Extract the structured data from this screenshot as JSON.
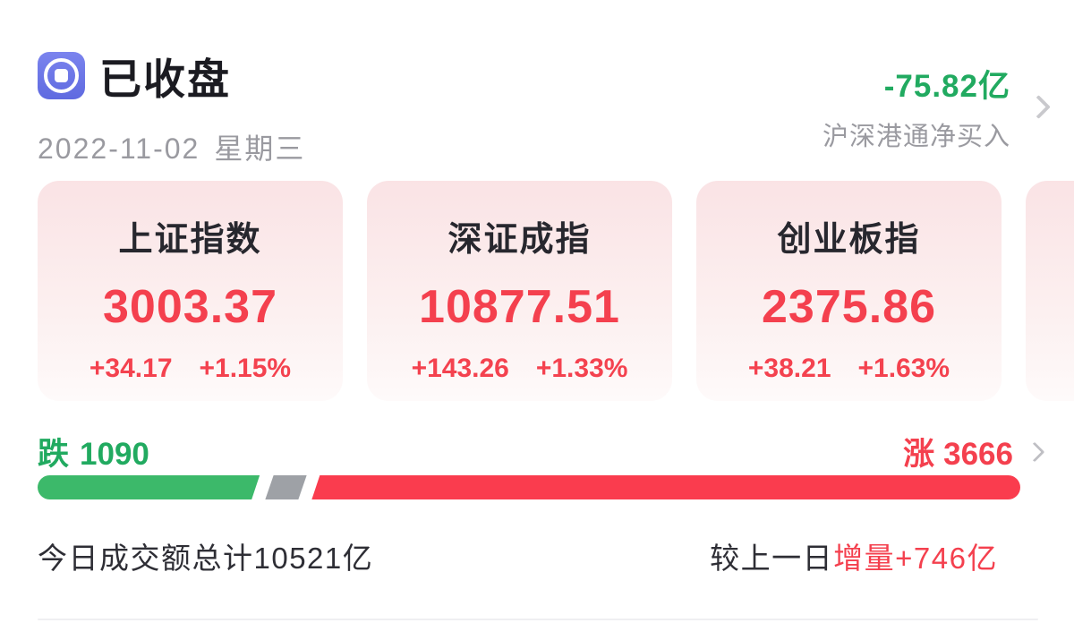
{
  "header": {
    "status_title": "已收盘",
    "date": "2022-11-02",
    "weekday": "星期三",
    "northbound": {
      "value": "-75.82亿",
      "label": "沪深港通净买入"
    }
  },
  "indices": [
    {
      "name": "上证指数",
      "value": "3003.37",
      "change": "+34.17",
      "change_pct": "+1.15%"
    },
    {
      "name": "深证成指",
      "value": "10877.51",
      "change": "+143.26",
      "change_pct": "+1.33%"
    },
    {
      "name": "创业板指",
      "value": "2375.86",
      "change": "+38.21",
      "change_pct": "+1.63%"
    }
  ],
  "breadth": {
    "down_label": "跌",
    "down_count": "1090",
    "up_label": "涨",
    "up_count": "3666",
    "bar": {
      "down_pct": 22.6,
      "flat_pct": 3.4,
      "up_pct": 72.1
    }
  },
  "turnover": {
    "total_text": "今日成交额总计10521亿",
    "compare_prefix": "较上一日",
    "compare_highlight": "增量+746亿"
  },
  "colors": {
    "up_red": "#f4404e",
    "down_green": "#21aa60",
    "bar_red": "#fa3c4e",
    "bar_green": "#3cb96a",
    "bar_gray": "#9ea1a6",
    "icon_blue": "#6b74e8"
  }
}
